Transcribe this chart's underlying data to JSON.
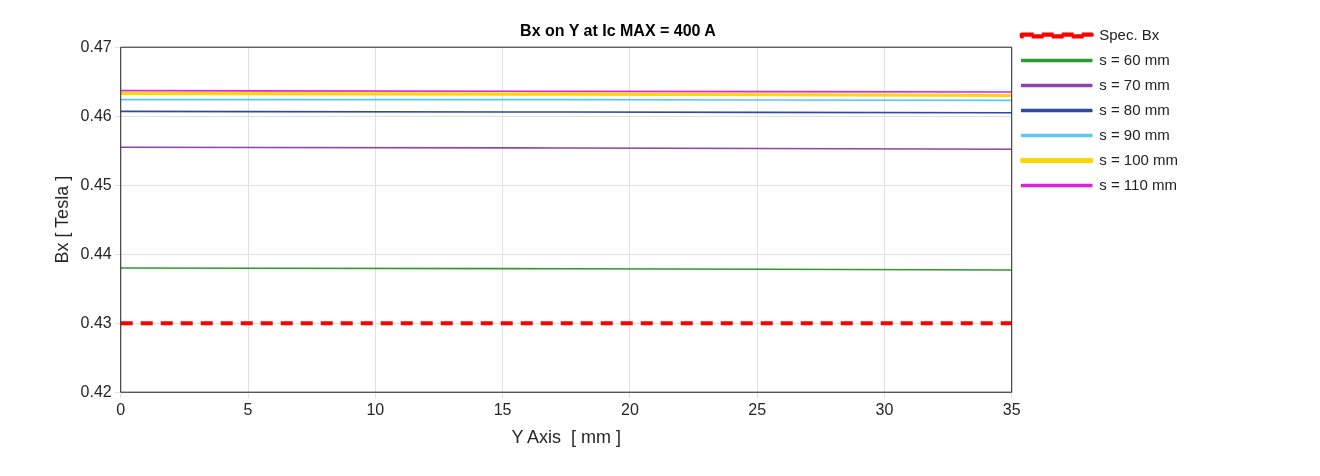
{
  "chart_data": {
    "type": "line",
    "title": "Bx on Y at Ic MAX = 400 A",
    "xlabel": "Y Axis  [ mm ]",
    "ylabel": "Bx [ Tesla ]",
    "x": [
      0,
      17.5,
      35
    ],
    "xlim": [
      0,
      35
    ],
    "xticks": [
      0,
      5,
      10,
      15,
      20,
      25,
      30,
      35
    ],
    "ylim": [
      0.42,
      0.47
    ],
    "yticks": [
      0.42,
      0.43,
      0.44,
      0.45,
      0.46,
      0.47
    ],
    "grid": true,
    "legend": "right",
    "marker": "none",
    "series": [
      {
        "name": "Spec. Bx",
        "color": "#ff0000",
        "values": [
          0.43,
          0.43,
          0.43
        ],
        "line_style": "dashed"
      },
      {
        "name": "s = 60 mm",
        "color": "#2e9a2e",
        "values": [
          0.438,
          0.4379,
          0.4377
        ]
      },
      {
        "name": "s = 70 mm",
        "color": "#8e44ad",
        "values": [
          0.4555,
          0.4554,
          0.4552
        ]
      },
      {
        "name": "s = 80 mm",
        "color": "#2e4aa0",
        "values": [
          0.4607,
          0.4606,
          0.4605
        ]
      },
      {
        "name": "s = 90 mm",
        "color": "#5bc8f0",
        "values": [
          0.4624,
          0.4624,
          0.4623
        ]
      },
      {
        "name": "s = 100 mm",
        "color": "#ffd700",
        "values": [
          0.4633,
          0.4632,
          0.463
        ]
      },
      {
        "name": "s = 110 mm",
        "color": "#dd22dd",
        "values": [
          0.4637,
          0.4636,
          0.4635
        ]
      }
    ]
  }
}
